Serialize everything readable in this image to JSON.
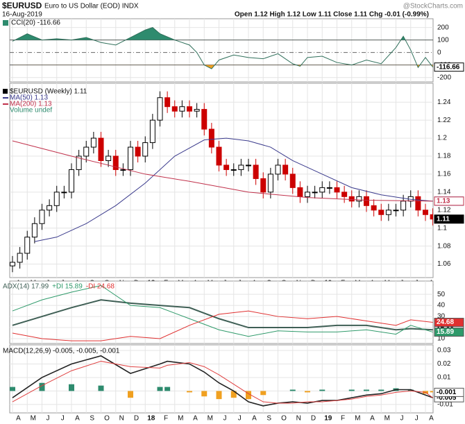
{
  "header": {
    "symbol": "$EURUSD",
    "name": "Euro to US Dollar (EOD) INDX",
    "date": "16-Aug-2019",
    "quote": "Open 1.12 High 1.12 Low 1.11 Close 1.11 Chg -0.01 (-0.99%)",
    "credit": "@StockCharts.com"
  },
  "chart_data": [
    {
      "type": "cci",
      "legend": "CCI(20) -116.66",
      "fill_up": "#2e8b6e",
      "fill_down": "#f0a020",
      "color": "#2f6f5a",
      "ylim": [
        -235,
        270
      ],
      "yticks": [
        200,
        100,
        0,
        -100,
        -200
      ],
      "grid": true,
      "x": [
        0,
        1,
        2,
        3,
        4,
        5,
        6,
        7,
        8,
        9,
        9.5,
        10,
        11,
        12,
        12.5,
        13,
        13.5,
        14,
        15,
        16,
        17,
        18,
        19,
        19.5,
        20,
        21,
        22,
        23,
        24,
        25,
        26,
        26.5,
        27,
        27.5,
        28,
        28.5
      ],
      "values": [
        90,
        150,
        100,
        110,
        100,
        120,
        80,
        60,
        120,
        180,
        200,
        150,
        100,
        60,
        0,
        -100,
        -130,
        -60,
        -20,
        -40,
        -50,
        -10,
        -90,
        -110,
        -40,
        -30,
        -80,
        -100,
        -60,
        -90,
        40,
        130,
        20,
        -120,
        -40,
        -116.66
      ]
    },
    {
      "type": "candlestick",
      "name": "$EURUSD (Weekly) 1.11",
      "volume_label": "Volume undef",
      "up_color": "#000000",
      "down_color": "#cc0000",
      "ylim": [
        1.045,
        1.261
      ],
      "yticks": [
        1.24,
        1.22,
        1.2,
        1.18,
        1.16,
        1.14,
        1.12,
        1.1,
        1.08,
        1.06
      ],
      "grid": true,
      "xticks": [
        {
          "value": 0,
          "label": "A"
        },
        {
          "value": 1,
          "label": "M"
        },
        {
          "value": 2,
          "label": "J"
        },
        {
          "value": 3,
          "label": "J"
        },
        {
          "value": 4,
          "label": "A"
        },
        {
          "value": 5,
          "label": "S"
        },
        {
          "value": 6,
          "label": "O"
        },
        {
          "value": 7,
          "label": "N"
        },
        {
          "value": 8,
          "label": "D"
        },
        {
          "value": 9,
          "label": "18"
        },
        {
          "value": 10,
          "label": "F"
        },
        {
          "value": 11,
          "label": "M"
        },
        {
          "value": 12,
          "label": "A"
        },
        {
          "value": 13,
          "label": "M"
        },
        {
          "value": 14,
          "label": "J"
        },
        {
          "value": 15,
          "label": "J"
        },
        {
          "value": 16,
          "label": "A"
        },
        {
          "value": 17,
          "label": "S"
        },
        {
          "value": 18,
          "label": "O"
        },
        {
          "value": 19,
          "label": "N"
        },
        {
          "value": 20,
          "label": "D"
        },
        {
          "value": 21,
          "label": "19"
        },
        {
          "value": 22,
          "label": "F"
        },
        {
          "value": 23,
          "label": "M"
        },
        {
          "value": 24,
          "label": "A"
        },
        {
          "value": 25,
          "label": "M"
        },
        {
          "value": 26,
          "label": "J"
        },
        {
          "value": 27,
          "label": "J"
        },
        {
          "value": 28,
          "label": "A"
        }
      ],
      "x": [
        0,
        0.5,
        1,
        1.5,
        2,
        2.5,
        3,
        3.5,
        4,
        4.5,
        5,
        5.5,
        6,
        6.5,
        7,
        7.5,
        8,
        8.5,
        9,
        9.5,
        10,
        10.5,
        11,
        11.5,
        12,
        12.5,
        13,
        13.5,
        14,
        14.5,
        15,
        15.5,
        16,
        16.5,
        17,
        17.5,
        18,
        18.5,
        19,
        19.5,
        20,
        20.5,
        21,
        21.5,
        22,
        22.5,
        23,
        23.5,
        24,
        24.5,
        25,
        25.5,
        26,
        26.5,
        27,
        27.5,
        28,
        28.5
      ],
      "open": [
        1.058,
        1.062,
        1.072,
        1.09,
        1.105,
        1.12,
        1.125,
        1.14,
        1.14,
        1.165,
        1.18,
        1.19,
        1.2,
        1.175,
        1.18,
        1.165,
        1.165,
        1.19,
        1.18,
        1.195,
        1.22,
        1.245,
        1.235,
        1.23,
        1.235,
        1.23,
        1.232,
        1.21,
        1.19,
        1.17,
        1.165,
        1.165,
        1.17,
        1.17,
        1.155,
        1.14,
        1.16,
        1.17,
        1.16,
        1.145,
        1.135,
        1.14,
        1.14,
        1.145,
        1.145,
        1.14,
        1.135,
        1.13,
        1.135,
        1.125,
        1.12,
        1.115,
        1.12,
        1.12,
        1.13,
        1.135,
        1.12,
        1.115
      ],
      "high": [
        1.069,
        1.079,
        1.097,
        1.112,
        1.127,
        1.132,
        1.147,
        1.147,
        1.172,
        1.187,
        1.197,
        1.207,
        1.207,
        1.187,
        1.187,
        1.172,
        1.197,
        1.197,
        1.202,
        1.227,
        1.252,
        1.252,
        1.242,
        1.242,
        1.242,
        1.239,
        1.239,
        1.217,
        1.197,
        1.177,
        1.172,
        1.177,
        1.177,
        1.177,
        1.162,
        1.167,
        1.177,
        1.177,
        1.167,
        1.152,
        1.147,
        1.147,
        1.152,
        1.152,
        1.152,
        1.147,
        1.142,
        1.142,
        1.142,
        1.132,
        1.127,
        1.127,
        1.127,
        1.137,
        1.142,
        1.142,
        1.127,
        1.122
      ],
      "low": [
        1.051,
        1.055,
        1.065,
        1.083,
        1.098,
        1.113,
        1.118,
        1.133,
        1.133,
        1.158,
        1.173,
        1.183,
        1.168,
        1.168,
        1.158,
        1.158,
        1.158,
        1.173,
        1.173,
        1.188,
        1.213,
        1.228,
        1.223,
        1.223,
        1.223,
        1.223,
        1.203,
        1.183,
        1.163,
        1.158,
        1.158,
        1.158,
        1.163,
        1.148,
        1.133,
        1.133,
        1.153,
        1.153,
        1.138,
        1.128,
        1.128,
        1.133,
        1.133,
        1.138,
        1.133,
        1.128,
        1.123,
        1.123,
        1.118,
        1.113,
        1.108,
        1.108,
        1.113,
        1.113,
        1.123,
        1.113,
        1.108,
        1.103
      ],
      "close": [
        1.062,
        1.072,
        1.09,
        1.105,
        1.12,
        1.125,
        1.14,
        1.14,
        1.165,
        1.18,
        1.19,
        1.2,
        1.175,
        1.18,
        1.165,
        1.165,
        1.19,
        1.18,
        1.195,
        1.22,
        1.245,
        1.235,
        1.23,
        1.235,
        1.23,
        1.232,
        1.21,
        1.19,
        1.17,
        1.165,
        1.165,
        1.17,
        1.17,
        1.155,
        1.14,
        1.16,
        1.17,
        1.16,
        1.145,
        1.135,
        1.14,
        1.14,
        1.145,
        1.145,
        1.14,
        1.135,
        1.13,
        1.135,
        1.125,
        1.12,
        1.115,
        1.12,
        1.12,
        1.13,
        1.135,
        1.12,
        1.115,
        1.11
      ],
      "series": [
        {
          "name": "MA(50) 1.13",
          "color": "#3a3a8c",
          "x": [
            1.5,
            3,
            5,
            7,
            9,
            11,
            13,
            14.5,
            16,
            17.5,
            19,
            21,
            23,
            25,
            27,
            28.5
          ],
          "values": [
            1.085,
            1.09,
            1.105,
            1.125,
            1.15,
            1.18,
            1.198,
            1.2,
            1.197,
            1.19,
            1.175,
            1.16,
            1.145,
            1.137,
            1.132,
            1.13
          ]
        },
        {
          "name": "MA(200) 1.13",
          "color": "#c0304a",
          "x": [
            0,
            4,
            9,
            12,
            16,
            20,
            24,
            28.5
          ],
          "values": [
            1.197,
            1.18,
            1.16,
            1.152,
            1.14,
            1.134,
            1.131,
            1.13
          ]
        }
      ]
    },
    {
      "type": "adx",
      "ylim": [
        5.6,
        62
      ],
      "yticks": [
        50,
        40,
        30,
        20,
        10
      ],
      "grid": true,
      "x": [
        0,
        2,
        4,
        6,
        8,
        10,
        12,
        14,
        16,
        18,
        20,
        22,
        24,
        26,
        27,
        28.5
      ],
      "series": [
        {
          "name": "ADX(14) 17.99",
          "color": "#3f5f55",
          "values": [
            22,
            30,
            38,
            45,
            42,
            40,
            38,
            28,
            20,
            20,
            20,
            22,
            22,
            18,
            19,
            17.99
          ]
        },
        {
          "name": "+DI 15.89",
          "color": "#2e9a6a",
          "values": [
            35,
            45,
            52,
            58,
            40,
            38,
            28,
            18,
            12,
            17,
            16,
            16,
            18,
            14,
            22,
            15.89
          ]
        },
        {
          "name": "-DI 24.68",
          "color": "#e03030",
          "values": [
            15,
            10,
            8,
            8,
            12,
            10,
            22,
            32,
            35,
            30,
            28,
            30,
            26,
            22,
            27,
            24.68
          ]
        }
      ]
    },
    {
      "type": "macd",
      "legend": "MACD(12,26,9) -0.005, -0.005, -0.001",
      "ylim": [
        -0.0162,
        0.0341
      ],
      "yticks": [
        0.03,
        0.02,
        0.01,
        0,
        -0.01
      ],
      "grid": true,
      "xticks": [
        {
          "value": 0,
          "label": "A"
        },
        {
          "value": 1,
          "label": "M"
        },
        {
          "value": 2,
          "label": "J"
        },
        {
          "value": 3,
          "label": "J"
        },
        {
          "value": 4,
          "label": "A"
        },
        {
          "value": 5,
          "label": "S"
        },
        {
          "value": 6,
          "label": "O"
        },
        {
          "value": 7,
          "label": "N"
        },
        {
          "value": 8,
          "label": "D"
        },
        {
          "value": 9,
          "label": "18"
        },
        {
          "value": 10,
          "label": "F"
        },
        {
          "value": 11,
          "label": "M"
        },
        {
          "value": 12,
          "label": "A"
        },
        {
          "value": 13,
          "label": "M"
        },
        {
          "value": 14,
          "label": "J"
        },
        {
          "value": 15,
          "label": "J"
        },
        {
          "value": 16,
          "label": "A"
        },
        {
          "value": 17,
          "label": "S"
        },
        {
          "value": 18,
          "label": "O"
        },
        {
          "value": 19,
          "label": "N"
        },
        {
          "value": 20,
          "label": "D"
        },
        {
          "value": 21,
          "label": "19"
        },
        {
          "value": 22,
          "label": "F"
        },
        {
          "value": 23,
          "label": "M"
        },
        {
          "value": 24,
          "label": "A"
        },
        {
          "value": 25,
          "label": "M"
        },
        {
          "value": 26,
          "label": "J"
        },
        {
          "value": 27,
          "label": "J"
        },
        {
          "value": 28,
          "label": "A"
        }
      ],
      "x": [
        0,
        2,
        4,
        6,
        8,
        10,
        10.5,
        12,
        13,
        14,
        15,
        16,
        17,
        18,
        19,
        20,
        21,
        22,
        23,
        24,
        25,
        26,
        27,
        28,
        28.5
      ],
      "series": [
        {
          "color": "#222222",
          "values": [
            -0.005,
            0.01,
            0.02,
            0.026,
            0.013,
            0.02,
            0.022,
            0.02,
            0.014,
            0.006,
            0,
            -0.008,
            -0.011,
            -0.009,
            -0.008,
            -0.009,
            -0.007,
            -0.007,
            -0.005,
            -0.003,
            -0.002,
            0.001,
            0.001,
            -0.003,
            -0.005
          ]
        },
        {
          "color": "#e04040",
          "values": [
            -0.008,
            0.004,
            0.015,
            0.022,
            0.018,
            0.017,
            0.019,
            0.021,
            0.018,
            0.012,
            0.005,
            -0.002,
            -0.008,
            -0.009,
            -0.009,
            -0.008,
            -0.008,
            -0.007,
            -0.006,
            -0.004,
            -0.003,
            -0.001,
            0,
            -0.001,
            -0.005
          ]
        },
        {
          "type": "histogram",
          "color": "#2e8b6e",
          "negative_color": "#f0a020",
          "values": [
            0.003,
            0.006,
            0.005,
            0.004,
            -0.005,
            0.003,
            0.003,
            -0.001,
            -0.004,
            -0.006,
            -0.005,
            -0.006,
            -0.003,
            0,
            0.001,
            -0.001,
            0.001,
            0,
            0.001,
            0.001,
            0.001,
            0.002,
            0.001,
            -0.002,
            -0.001
          ]
        }
      ]
    }
  ]
}
